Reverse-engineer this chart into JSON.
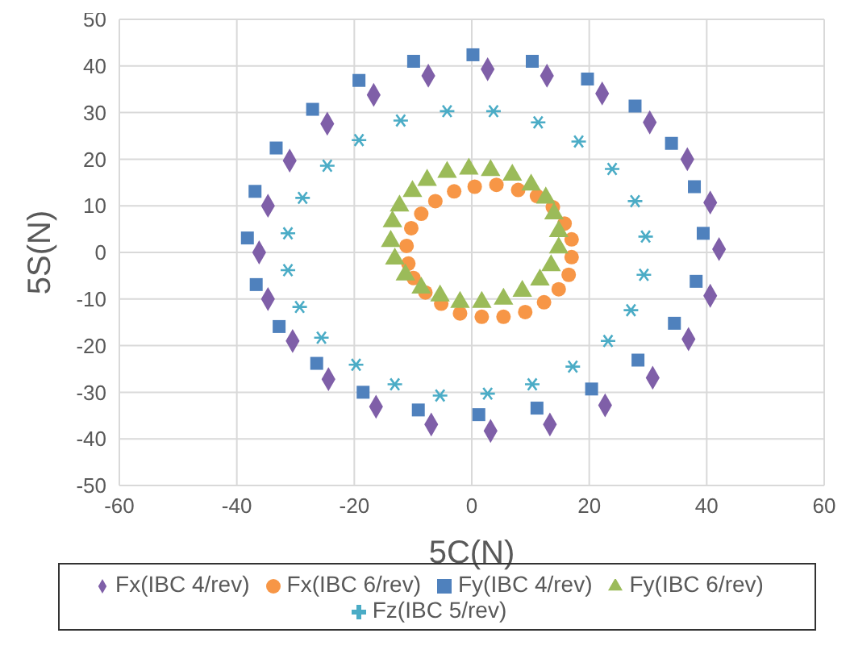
{
  "chart_data": {
    "type": "scatter",
    "xlabel": "5C(N)",
    "ylabel": "5S(N)",
    "xlim": [
      -60,
      60
    ],
    "xticks": [
      -60,
      -40,
      -20,
      0,
      20,
      40,
      60
    ],
    "ylim": [
      -50,
      50
    ],
    "yticks": [
      -50,
      -40,
      -30,
      -20,
      -10,
      0,
      10,
      20,
      30,
      40,
      50
    ],
    "grid": true,
    "legend": "bottom",
    "series": [
      {
        "name": "Fx(IBC 4/rev)",
        "color": "#7f5fa8",
        "marker": "diamond",
        "x": [
          2.7,
          12.8,
          22.2,
          30.3,
          36.7,
          40.6,
          42.1,
          40.6,
          36.9,
          30.8,
          22.7,
          13.3,
          3.2,
          -6.9,
          -16.3,
          -24.4,
          -30.5,
          -34.7,
          -36.2,
          -34.7,
          -31.0,
          -24.6,
          -16.7,
          -7.4
        ],
        "values": [
          39.3,
          37.9,
          34.1,
          27.9,
          20.0,
          10.7,
          0.7,
          -9.3,
          -18.6,
          -26.9,
          -32.8,
          -36.9,
          -38.3,
          -36.9,
          -33.1,
          -27.2,
          -19.0,
          -10.0,
          0,
          10.0,
          19.7,
          27.6,
          33.8,
          37.9
        ]
      },
      {
        "name": "Fx(IBC 6/rev)",
        "color": "#f79646",
        "marker": "circle",
        "x": [
          0.5,
          4.2,
          7.9,
          11.1,
          13.8,
          15.8,
          17.0,
          17.0,
          16.5,
          14.8,
          12.3,
          9.1,
          5.4,
          1.7,
          -2.0,
          -5.2,
          -7.9,
          -9.9,
          -10.8,
          -11.1,
          -10.3,
          -8.6,
          -6.2,
          -3.0
        ],
        "values": [
          14.1,
          14.5,
          13.4,
          12.1,
          9.7,
          6.2,
          2.8,
          -1.0,
          -4.8,
          -7.9,
          -10.7,
          -12.8,
          -13.8,
          -13.8,
          -13.1,
          -11.0,
          -8.6,
          -5.5,
          -2.4,
          1.4,
          5.2,
          8.3,
          11.0,
          13.1
        ]
      },
      {
        "name": "Fy(IBC 4/rev)",
        "color": "#4f81bd",
        "marker": "square",
        "x": [
          0.2,
          10.3,
          19.7,
          27.8,
          34.0,
          37.9,
          39.4,
          38.2,
          34.5,
          28.3,
          20.4,
          11.1,
          1.2,
          -9.1,
          -18.5,
          -26.4,
          -32.8,
          -36.7,
          -38.2,
          -36.9,
          -33.3,
          -27.1,
          -19.2,
          -9.9
        ],
        "values": [
          42.4,
          41.0,
          37.2,
          31.4,
          23.4,
          14.1,
          4.1,
          -6.2,
          -15.2,
          -23.1,
          -29.3,
          -33.4,
          -34.8,
          -33.8,
          -30.0,
          -23.8,
          -15.9,
          -6.9,
          3.1,
          13.1,
          22.4,
          30.7,
          36.9,
          41.0
        ]
      },
      {
        "name": "Fy(IBC 6/rev)",
        "color": "#9bbb59",
        "marker": "triangle",
        "x": [
          -0.5,
          3.2,
          6.9,
          10.1,
          12.6,
          14.0,
          14.8,
          14.8,
          13.5,
          11.6,
          8.6,
          5.4,
          1.7,
          -2.0,
          -5.4,
          -8.6,
          -11.3,
          -13.1,
          -13.8,
          -13.5,
          -12.3,
          -10.1,
          -7.6,
          -4.2
        ],
        "values": [
          17.9,
          17.6,
          16.6,
          14.5,
          11.7,
          8.3,
          4.5,
          1.0,
          -2.8,
          -5.9,
          -8.3,
          -10.0,
          -10.7,
          -10.7,
          -9.3,
          -7.6,
          -4.8,
          -1.4,
          2.4,
          6.6,
          10.0,
          13.1,
          15.5,
          17.2
        ]
      },
      {
        "name": "Fz(IBC 5/rev)",
        "color": "#4bacc6",
        "marker": "cross",
        "x": [
          -4.2,
          3.7,
          11.3,
          18.2,
          23.9,
          27.8,
          29.6,
          29.3,
          27.1,
          23.2,
          17.2,
          10.3,
          2.7,
          -5.4,
          -13.1,
          -19.7,
          -25.6,
          -29.3,
          -31.3,
          -31.3,
          -28.8,
          -24.6,
          -19.2,
          -12.1
        ],
        "values": [
          30.3,
          30.3,
          27.9,
          23.8,
          17.9,
          11.0,
          3.4,
          -4.8,
          -12.4,
          -19.0,
          -24.5,
          -28.3,
          -30.3,
          -30.7,
          -28.3,
          -24.1,
          -18.3,
          -11.7,
          -3.8,
          4.1,
          11.7,
          18.6,
          24.1,
          28.3
        ]
      }
    ]
  }
}
